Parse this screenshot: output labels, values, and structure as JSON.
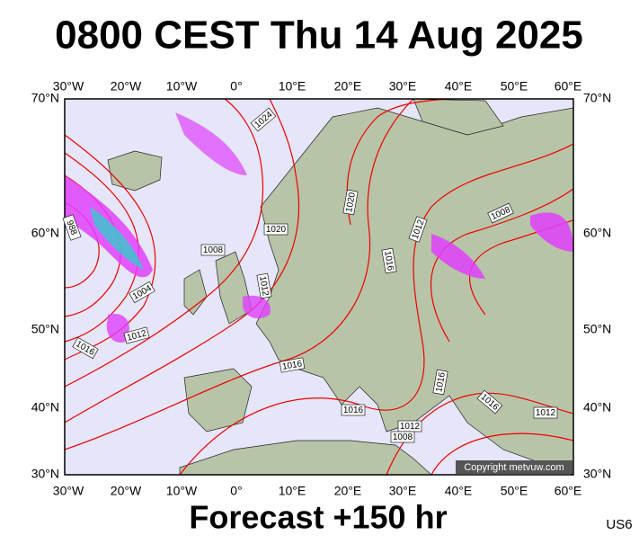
{
  "title": "0800 CEST Thu 14 Aug 2025",
  "footer": "Forecast +150 hr",
  "code": "US6",
  "credit": "Copyright metvuw.com",
  "lon_labels": [
    "30°W",
    "20°W",
    "10°W",
    "0°",
    "10°E",
    "20°E",
    "30°E",
    "40°E",
    "50°E",
    "60°E"
  ],
  "lat_labels": [
    "70°N",
    "60°N",
    "50°N",
    "40°N",
    "30°N"
  ],
  "isobar_labels": [
    "1024",
    "988",
    "1020",
    "1008",
    "1012",
    "1004",
    "1012",
    "1016",
    "1016",
    "1016",
    "1020",
    "1016",
    "1012",
    "1008",
    "1016",
    "1016",
    "1012",
    "1012",
    "1008"
  ]
}
